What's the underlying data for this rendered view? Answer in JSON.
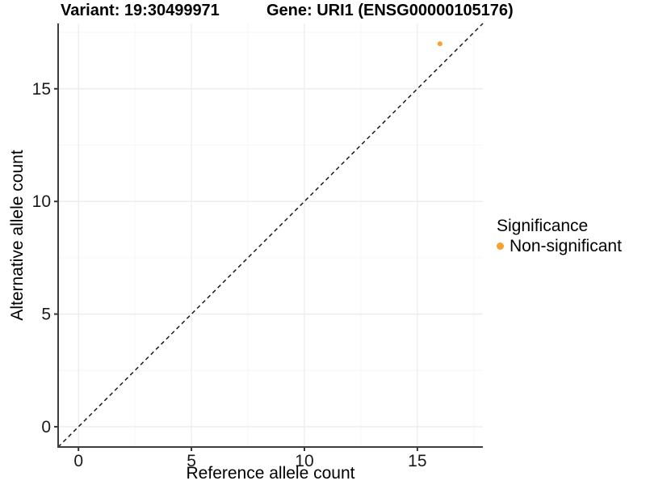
{
  "title": {
    "variant": "Variant: 19:30499971",
    "gene": "Gene: URI1 (ENSG00000105176)"
  },
  "axes": {
    "x_label": "Reference allele count",
    "y_label": "Alternative allele count"
  },
  "legend": {
    "title": "Significance",
    "items": [
      {
        "label": "Non-significant",
        "color": "#F9A02E"
      }
    ]
  },
  "colors": {
    "background": "#ffffff",
    "point": "#F9A02E",
    "grid_major": "#ececec",
    "grid_minor": "#f6f6f6",
    "axis_line": "#3d3d3d",
    "tick_mark": "#333333",
    "tick_text": "#1a1a1a",
    "reference_line": "#1a1a1a"
  },
  "chart_data": {
    "type": "scatter",
    "title": "Variant: 19:30499971   Gene: URI1 (ENSG00000105176)",
    "xlabel": "Reference allele count",
    "ylabel": "Alternative allele count",
    "xlim": [
      -0.9,
      17.9
    ],
    "ylim": [
      -0.9,
      17.9
    ],
    "x_ticks": [
      0,
      5,
      10,
      15
    ],
    "y_ticks": [
      0,
      5,
      10,
      15
    ],
    "x_minor_ticks": [
      2.5,
      7.5,
      12.5,
      17.5
    ],
    "y_minor_ticks": [
      2.5,
      7.5,
      12.5,
      17.5
    ],
    "grid": true,
    "legend_position": "right-middle",
    "series": [
      {
        "name": "Non-significant",
        "color": "#F9A02E",
        "points": [
          {
            "x": 16,
            "y": 17
          }
        ]
      }
    ],
    "reference_line": {
      "type": "identity",
      "slope": 1,
      "intercept": 0,
      "style": "dashed",
      "color": "#1a1a1a"
    }
  }
}
